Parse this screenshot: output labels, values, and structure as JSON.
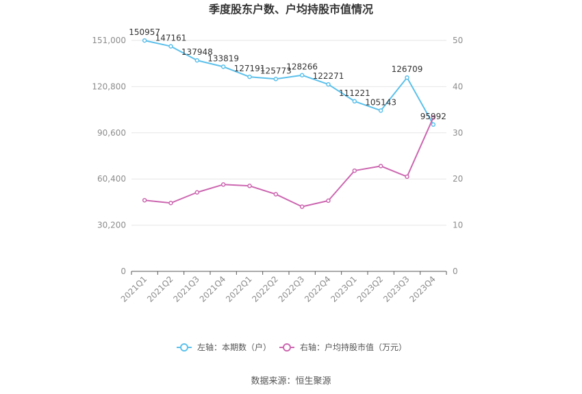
{
  "chart_data": {
    "type": "line",
    "title": "季度股东户数、户均持股市值情况",
    "categories": [
      "2021Q1",
      "2021Q2",
      "2021Q3",
      "2021Q4",
      "2022Q1",
      "2022Q2",
      "2022Q3",
      "2022Q4",
      "2023Q1",
      "2023Q2",
      "2023Q3",
      "2023Q4"
    ],
    "left_axis": {
      "min": 0,
      "max": 151000,
      "ticks": [
        "0",
        "30,200",
        "60,400",
        "90,600",
        "120,800",
        "151,000"
      ],
      "tick_values": [
        0,
        30200,
        60400,
        90600,
        120800,
        151000
      ]
    },
    "right_axis": {
      "min": 0,
      "max": 50,
      "ticks": [
        "0",
        "10",
        "20",
        "30",
        "40",
        "50"
      ],
      "tick_values": [
        0,
        10,
        20,
        30,
        40,
        50
      ]
    },
    "series": [
      {
        "name": "左轴：本期数（户）",
        "axis": "left",
        "color": "#5bc0eb",
        "values": [
          150957,
          147161,
          137948,
          133819,
          127191,
          125773,
          128266,
          122271,
          111221,
          105143,
          126709,
          95992
        ],
        "labels": [
          "150957",
          "147161",
          "137948",
          "133819",
          "127191",
          "125773",
          "128266",
          "122271",
          "111221",
          "105143",
          "126709",
          "95992"
        ]
      },
      {
        "name": "右轴：户均持股市值（万元）",
        "axis": "right",
        "color": "#cc66b0",
        "values": [
          15.4,
          14.8,
          17.1,
          18.8,
          18.5,
          16.7,
          14.0,
          15.3,
          21.8,
          22.8,
          20.5,
          33.3
        ]
      }
    ],
    "grid": true,
    "legend": "bottom-center"
  },
  "source_text": "数据来源：恒生聚源"
}
